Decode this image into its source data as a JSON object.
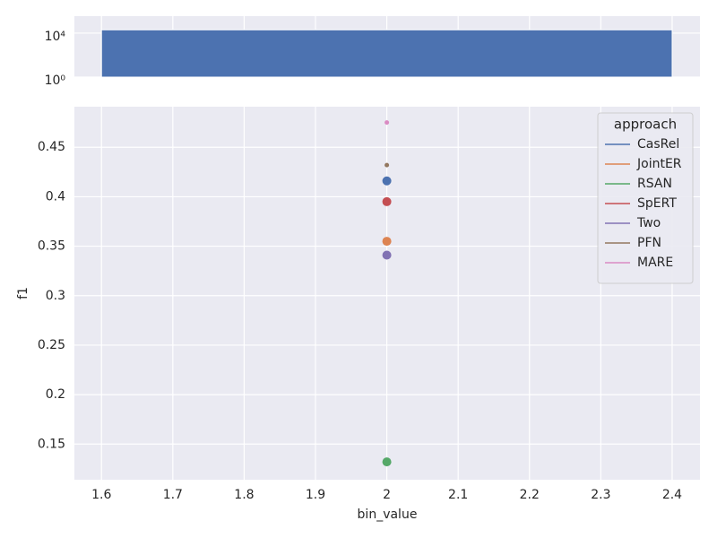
{
  "chart_data": [
    {
      "type": "histogram",
      "bins": [
        1.6,
        2.4
      ],
      "counts": [
        20000
      ],
      "color": "#4c72b0",
      "log_y": true,
      "ylim": [
        1,
        350000
      ],
      "yticks": [
        {
          "value": 1,
          "label": "10⁰"
        },
        {
          "value": 10000,
          "label": "10⁴"
        }
      ],
      "xlim": [
        1.562,
        2.439
      ],
      "grid": true
    },
    {
      "type": "scatter",
      "xlabel": "bin_value",
      "ylabel": "f1",
      "xlim": [
        1.562,
        2.439
      ],
      "ylim": [
        0.114,
        0.491
      ],
      "xticks": [
        1.6,
        1.7,
        1.8,
        1.9,
        2.0,
        2.1,
        2.2,
        2.3,
        2.4
      ],
      "yticks": [
        0.15,
        0.2,
        0.25,
        0.3,
        0.35,
        0.4,
        0.45
      ],
      "grid": true,
      "legend_title": "approach",
      "legend_position": "upper right",
      "series": [
        {
          "name": "CasRel",
          "color": "#4c72b0",
          "marker_size": 5,
          "x": [
            2.0
          ],
          "values": [
            0.416
          ]
        },
        {
          "name": "JointER",
          "color": "#dd8452",
          "marker_size": 5,
          "x": [
            2.0
          ],
          "values": [
            0.355
          ]
        },
        {
          "name": "RSAN",
          "color": "#55a868",
          "marker_size": 5,
          "x": [
            2.0
          ],
          "values": [
            0.132
          ]
        },
        {
          "name": "SpERT",
          "color": "#c44e52",
          "marker_size": 5,
          "x": [
            2.0
          ],
          "values": [
            0.395
          ]
        },
        {
          "name": "Two",
          "color": "#8172b3",
          "marker_size": 5,
          "x": [
            2.0
          ],
          "values": [
            0.341
          ]
        },
        {
          "name": "PFN",
          "color": "#937860",
          "marker_size": 2.5,
          "x": [
            2.0
          ],
          "values": [
            0.432
          ]
        },
        {
          "name": "MARE",
          "color": "#da8bc3",
          "marker_size": 2.5,
          "x": [
            2.0
          ],
          "values": [
            0.475
          ]
        }
      ]
    }
  ]
}
